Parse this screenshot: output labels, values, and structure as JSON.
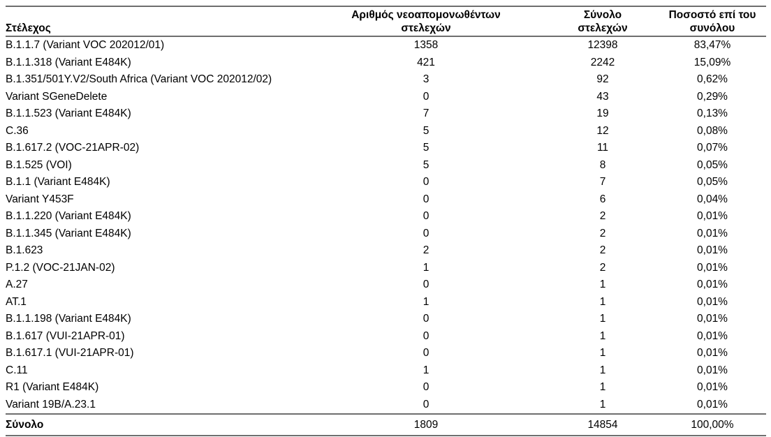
{
  "table": {
    "columns": [
      {
        "label": "Στέλεχος"
      },
      {
        "label": "Αριθμός νεοαπομονωθέντων στελεχών"
      },
      {
        "label": "Σύνολο στελεχών"
      },
      {
        "label": "Ποσοστό επί του συνόλου"
      }
    ],
    "rows": [
      [
        "B.1.1.7 (Variant VOC 202012/01)",
        "1358",
        "12398",
        "83,47%"
      ],
      [
        "B.1.1.318 (Variant E484K)",
        "421",
        "2242",
        "15,09%"
      ],
      [
        "B.1.351/501Y.V2/South Africa (Variant VOC 202012/02)",
        "3",
        "92",
        "0,62%"
      ],
      [
        "Variant SGeneDelete",
        "0",
        "43",
        "0,29%"
      ],
      [
        "B.1.1.523 (Variant E484K)",
        "7",
        "19",
        "0,13%"
      ],
      [
        "C.36",
        "5",
        "12",
        "0,08%"
      ],
      [
        "B.1.617.2 (VOC-21APR-02)",
        "5",
        "11",
        "0,07%"
      ],
      [
        "B.1.525 (VOI)",
        "5",
        "8",
        "0,05%"
      ],
      [
        "B.1.1 (Variant E484K)",
        "0",
        "7",
        "0,05%"
      ],
      [
        "Variant Y453F",
        "0",
        "6",
        "0,04%"
      ],
      [
        "B.1.1.220 (Variant E484K)",
        "0",
        "2",
        "0,01%"
      ],
      [
        "B.1.1.345 (Variant E484K)",
        "0",
        "2",
        "0,01%"
      ],
      [
        "B.1.623",
        "2",
        "2",
        "0,01%"
      ],
      [
        "P.1.2 (VOC-21JAN-02)",
        "1",
        "2",
        "0,01%"
      ],
      [
        "A.27",
        "0",
        "1",
        "0,01%"
      ],
      [
        "AT.1",
        "1",
        "1",
        "0,01%"
      ],
      [
        "B.1.1.198 (Variant E484K)",
        "0",
        "1",
        "0,01%"
      ],
      [
        "B.1.617 (VUI-21APR-01)",
        "0",
        "1",
        "0,01%"
      ],
      [
        "B.1.617.1 (VUI-21APR-01)",
        "0",
        "1",
        "0,01%"
      ],
      [
        "C.11",
        "1",
        "1",
        "0,01%"
      ],
      [
        "R1 (Variant E484K)",
        "0",
        "1",
        "0,01%"
      ],
      [
        "Variant 19B/A.23.1",
        "0",
        "1",
        "0,01%"
      ]
    ],
    "total_row": [
      "Σύνολο",
      "1809",
      "14854",
      "100,00%"
    ],
    "styles": {
      "rule_color": "#6e6e6e",
      "text_color": "#000000",
      "background": "#ffffff"
    }
  }
}
